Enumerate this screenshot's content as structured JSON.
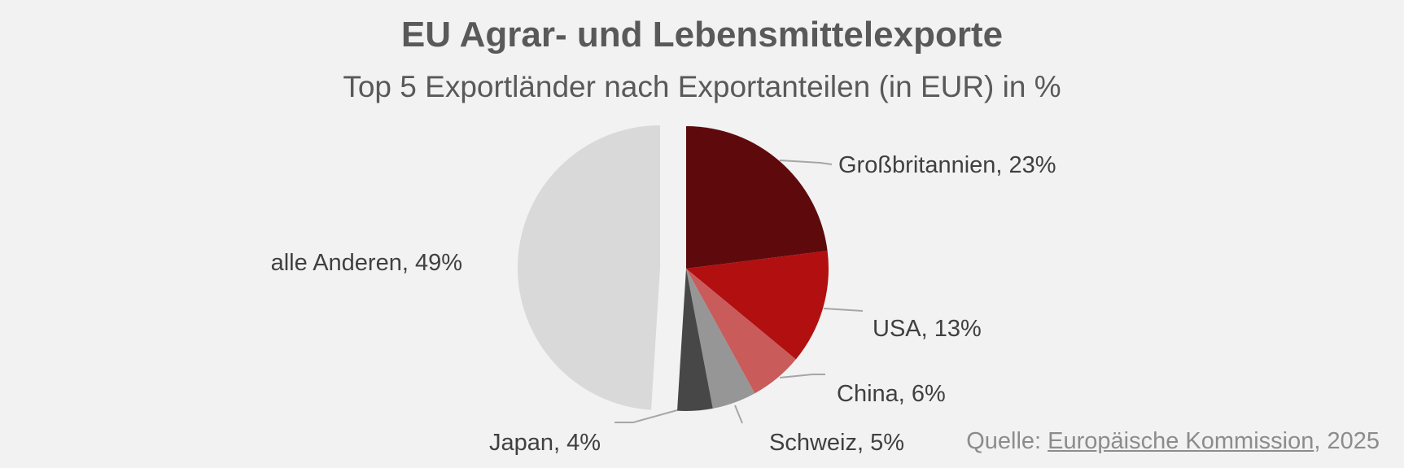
{
  "chart_data": {
    "type": "pie",
    "title": "EU Agrar- und Lebensmittelexporte",
    "subtitle": "Top 5 Exportländer nach Exportanteilen (in EUR) in %",
    "slices": [
      {
        "label": "Großbritannien",
        "value": 23,
        "display": "Großbritannien, 23%",
        "color": "#5e0a0d"
      },
      {
        "label": "USA",
        "value": 13,
        "display": "USA, 13%",
        "color": "#b20f11"
      },
      {
        "label": "China",
        "value": 6,
        "display": "China, 6%",
        "color": "#c95b5b"
      },
      {
        "label": "Schweiz",
        "value": 5,
        "display": "Schweiz, 5%",
        "color": "#969696"
      },
      {
        "label": "Japan",
        "value": 4,
        "display": "Japan, 4%",
        "color": "#474747"
      },
      {
        "label": "alle Anderen",
        "value": 49,
        "display": "alle Anderen, 49%",
        "color": "#d9d9d9",
        "exploded": true
      }
    ],
    "leader_line_color": "#a6a6a6"
  },
  "source": {
    "prefix": "Quelle: ",
    "link_text": "Europäische Kommission",
    "suffix": ", 2025"
  }
}
